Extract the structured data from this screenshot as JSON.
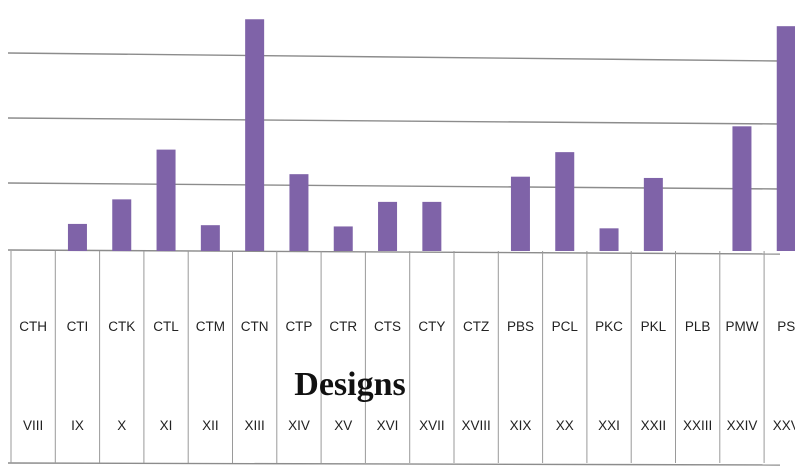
{
  "chart_data": {
    "type": "bar",
    "xlabel": "Designs",
    "ylabel": "",
    "grid": true,
    "ylim": [
      0,
      37
    ],
    "categories": [
      "CTH",
      "CTI",
      "CTK",
      "CTL",
      "CTM",
      "CTN",
      "CTP",
      "CTR",
      "CTS",
      "CTY",
      "CTZ",
      "PBS",
      "PCL",
      "PKC",
      "PKL",
      "PLB",
      "PMW",
      "PS"
    ],
    "roman_numerals": [
      "VIII",
      "IX",
      "X",
      "XI",
      "XII",
      "XIII",
      "XIV",
      "XV",
      "XVI",
      "XVII",
      "XVIII",
      "XIX",
      "XX",
      "XXI",
      "XXII",
      "XXIII",
      "XXIV",
      "XXV"
    ],
    "values": [
      0,
      4.3,
      8.2,
      16.1,
      4.1,
      36.8,
      12.2,
      3.9,
      7.8,
      7.8,
      0,
      11.8,
      15.7,
      3.6,
      11.6,
      0,
      19.8,
      35.7
    ]
  }
}
